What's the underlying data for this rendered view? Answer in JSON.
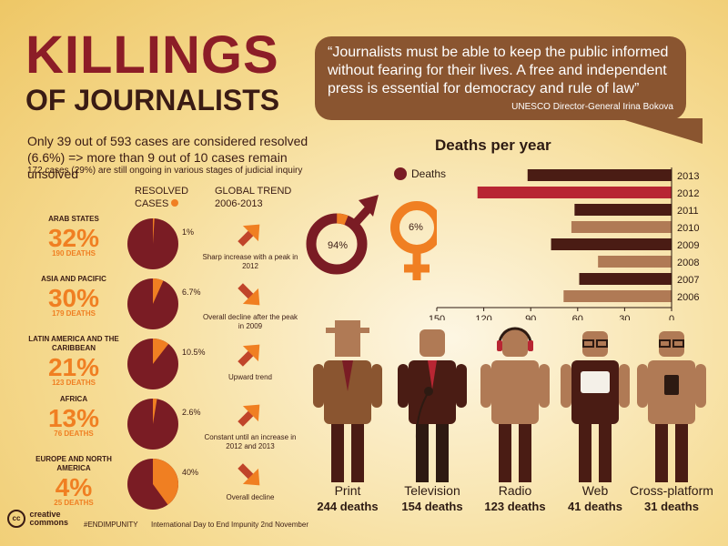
{
  "title": {
    "line1": "KILLINGS",
    "line2": "OF JOURNALISTS"
  },
  "quote": {
    "text": "“Journalists must be able to keep the public informed without fearing for their lives. A free and independent press is essential for democracy and rule of law”",
    "source": "UNESCO Director-General Irina Bokova"
  },
  "summary": {
    "line1": "Only 39 out of 593 cases are considered resolved (6.6%) => more than 9 out of 10 cases remain unsolved",
    "line2": "172 cases (29%) are still ongoing in various stages of judicial inquiry"
  },
  "headers": {
    "resolved": "RESOLVED",
    "cases": "CASES",
    "trend": "GLOBAL TREND",
    "trend_years": "2006-2013"
  },
  "regions": [
    {
      "name": "ARAB STATES",
      "pct": "32%",
      "deaths": "190 DEATHS",
      "resolved_label": "1%",
      "trend": "Sharp increase with a peak in 2012"
    },
    {
      "name": "ASIA AND PACIFIC",
      "pct": "30%",
      "deaths": "179 DEATHS",
      "resolved_label": "6.7%",
      "trend": "Overall decline after the peak in 2009"
    },
    {
      "name": "LATIN AMERICA AND THE CARIBBEAN",
      "pct": "21%",
      "deaths": "123 DEATHS",
      "resolved_label": "10.5%",
      "trend": "Upward trend"
    },
    {
      "name": "AFRICA",
      "pct": "13%",
      "deaths": "76 DEATHS",
      "resolved_label": "2.6%",
      "trend": "Constant until an increase in 2012 and 2013"
    },
    {
      "name": "EUROPE AND NORTH AMERICA",
      "pct": "4%",
      "deaths": "25 DEATHS",
      "resolved_label": "40%",
      "trend": "Overall decline"
    }
  ],
  "gender": {
    "male": "94%",
    "female": "6%",
    "male_icon": "male-symbol-icon",
    "female_icon": "female-symbol-icon"
  },
  "media": [
    {
      "name": "Print",
      "deaths": "244 deaths",
      "icon": "print-journalist-icon"
    },
    {
      "name": "Television",
      "deaths": "154 deaths",
      "icon": "television-journalist-icon"
    },
    {
      "name": "Radio",
      "deaths": "123 deaths",
      "icon": "radio-journalist-icon"
    },
    {
      "name": "Web",
      "deaths": "41 deaths",
      "icon": "web-journalist-icon"
    },
    {
      "name": "Cross-platform",
      "deaths": "31 deaths",
      "icon": "cross-platform-journalist-icon"
    }
  ],
  "footer": {
    "cc_line1": "creative",
    "cc_line2": "commons",
    "hashtag": "#ENDIMPUNITY",
    "event": "International Day to End Impunity 2nd November"
  },
  "colors": {
    "dark_brown": "#4a1c14",
    "maroon": "#7a1c24",
    "accent_red": "#b82633",
    "orange": "#f07f22",
    "tan": "#b07a55",
    "quote_brown": "#8a5530"
  },
  "chart_data": [
    {
      "type": "bar",
      "orientation": "horizontal",
      "title": "Deaths per year",
      "legend": [
        "Deaths"
      ],
      "legend_position": "top-left",
      "categories": [
        "2013",
        "2012",
        "2011",
        "2010",
        "2009",
        "2008",
        "2007",
        "2006"
      ],
      "values": [
        92,
        124,
        62,
        64,
        77,
        47,
        59,
        69
      ],
      "xlim": [
        0,
        150
      ],
      "x_reversed": true,
      "xticks": [
        150,
        120,
        90,
        60,
        30,
        0
      ],
      "highlight": "2012"
    },
    {
      "type": "pie",
      "title": "Resolved cases",
      "categories": [
        "ARAB STATES",
        "ASIA AND PACIFIC",
        "LATIN AMERICA AND THE CARIBBEAN",
        "AFRICA",
        "EUROPE AND NORTH AMERICA"
      ],
      "resolved_pct": [
        1,
        6.7,
        10.5,
        2.6,
        40
      ]
    },
    {
      "type": "pie",
      "title": "Gender",
      "categories": [
        "Male",
        "Female"
      ],
      "values": [
        94,
        6
      ]
    }
  ]
}
